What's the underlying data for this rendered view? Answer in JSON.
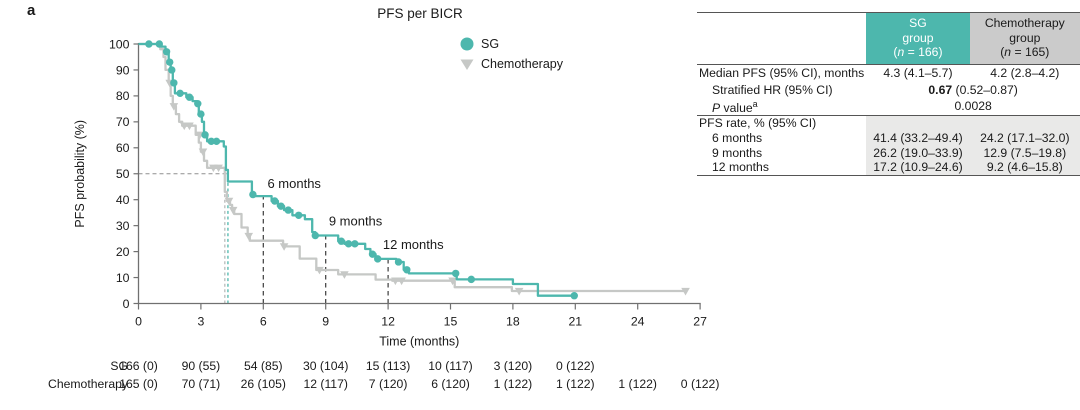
{
  "panel_label": "a",
  "title": "PFS per BICR",
  "legend": {
    "sg": "SG",
    "chemo": "Chemotherapy"
  },
  "colors": {
    "sg_teal": "#4db7ad",
    "chemo_gray": "#c6c8c6",
    "chemo_header_bg": "#cbcbcb",
    "rate_section_bg": "#e9e9e8",
    "axis": "#707070",
    "text": "#1a1a1a",
    "month_guide_dash": "#3b3b3b",
    "half_guide_dash": "#8f8f8f"
  },
  "chart_data": {
    "type": "line",
    "subtype": "kaplan-meier-step",
    "title": "PFS per BICR",
    "xlabel": "Time (months)",
    "ylabel": "PFS probability (%)",
    "xlim": [
      0,
      27
    ],
    "xticks": [
      0,
      3,
      6,
      9,
      12,
      15,
      18,
      21,
      24,
      27
    ],
    "ylim": [
      0,
      100
    ],
    "yticks": [
      0,
      10,
      20,
      30,
      40,
      50,
      60,
      70,
      80,
      90,
      100
    ],
    "grid": false,
    "legend_position": "upper right",
    "series": [
      {
        "name": "Chemotherapy",
        "color": "#c6c8c6",
        "marker": "triangle-down",
        "steps": [
          [
            0,
            100
          ],
          [
            1.05,
            100
          ],
          [
            1.05,
            98
          ],
          [
            1.2,
            98
          ],
          [
            1.2,
            95
          ],
          [
            1.3,
            95
          ],
          [
            1.3,
            90
          ],
          [
            1.45,
            90
          ],
          [
            1.45,
            85
          ],
          [
            1.55,
            85
          ],
          [
            1.55,
            80
          ],
          [
            1.65,
            80
          ],
          [
            1.65,
            76
          ],
          [
            1.8,
            76
          ],
          [
            1.8,
            73
          ],
          [
            1.95,
            73
          ],
          [
            1.95,
            70
          ],
          [
            2.1,
            70
          ],
          [
            2.1,
            68.5
          ],
          [
            2.75,
            68.5
          ],
          [
            2.75,
            65
          ],
          [
            2.9,
            65
          ],
          [
            2.9,
            62
          ],
          [
            3.0,
            62
          ],
          [
            3.0,
            58.5
          ],
          [
            3.15,
            58.5
          ],
          [
            3.15,
            55
          ],
          [
            3.3,
            55
          ],
          [
            3.3,
            52.3
          ],
          [
            4.15,
            52.3
          ],
          [
            4.15,
            43
          ],
          [
            4.25,
            43
          ],
          [
            4.25,
            39.5
          ],
          [
            4.4,
            39.5
          ],
          [
            4.4,
            38
          ],
          [
            4.5,
            38
          ],
          [
            4.5,
            36
          ],
          [
            4.6,
            36
          ],
          [
            4.6,
            34.5
          ],
          [
            4.95,
            34.5
          ],
          [
            4.95,
            29.3
          ],
          [
            5.25,
            29.3
          ],
          [
            5.25,
            26
          ],
          [
            5.35,
            26
          ],
          [
            5.35,
            24.2
          ],
          [
            6.95,
            24.2
          ],
          [
            6.95,
            22
          ],
          [
            7.75,
            22
          ],
          [
            7.75,
            17.3
          ],
          [
            8.55,
            17.3
          ],
          [
            8.55,
            12.9
          ],
          [
            9.6,
            12.9
          ],
          [
            9.6,
            11.2
          ],
          [
            11.4,
            11.2
          ],
          [
            11.4,
            9.2
          ],
          [
            12.2,
            9.2
          ],
          [
            12.2,
            8.8
          ],
          [
            15.2,
            8.8
          ],
          [
            15.2,
            6.3
          ],
          [
            17.95,
            6.3
          ],
          [
            17.95,
            4.8
          ],
          [
            26.3,
            4.8
          ]
        ],
        "censor_marks": [
          [
            1.5,
            85
          ],
          [
            1.7,
            76
          ],
          [
            2.2,
            68.5
          ],
          [
            2.45,
            68.5
          ],
          [
            2.95,
            65
          ],
          [
            3.1,
            58.5
          ],
          [
            3.6,
            52.3
          ],
          [
            3.85,
            52.3
          ],
          [
            4.35,
            39.5
          ],
          [
            4.55,
            36
          ],
          [
            5.3,
            26
          ],
          [
            7.0,
            22
          ],
          [
            8.7,
            12.9
          ],
          [
            9.9,
            11.2
          ],
          [
            12.35,
            8.8
          ],
          [
            12.65,
            8.8
          ],
          [
            15.1,
            8.8
          ],
          [
            18.3,
            4.8
          ],
          [
            26.3,
            4.8
          ]
        ]
      },
      {
        "name": "SG",
        "color": "#4db7ad",
        "marker": "circle",
        "steps": [
          [
            0,
            100
          ],
          [
            1.1,
            100
          ],
          [
            1.1,
            99
          ],
          [
            1.3,
            99
          ],
          [
            1.3,
            97
          ],
          [
            1.45,
            97
          ],
          [
            1.45,
            93
          ],
          [
            1.55,
            93
          ],
          [
            1.55,
            90
          ],
          [
            1.65,
            90
          ],
          [
            1.65,
            85
          ],
          [
            1.75,
            85
          ],
          [
            1.75,
            81
          ],
          [
            2.3,
            81
          ],
          [
            2.3,
            79.5
          ],
          [
            2.6,
            79.5
          ],
          [
            2.6,
            78
          ],
          [
            2.8,
            78
          ],
          [
            2.8,
            77
          ],
          [
            2.9,
            77
          ],
          [
            2.9,
            73
          ],
          [
            3.05,
            73
          ],
          [
            3.05,
            70
          ],
          [
            3.15,
            70
          ],
          [
            3.15,
            65
          ],
          [
            3.3,
            65
          ],
          [
            3.3,
            62.5
          ],
          [
            4.1,
            62.5
          ],
          [
            4.1,
            60.5
          ],
          [
            4.2,
            60.5
          ],
          [
            4.2,
            51.5
          ],
          [
            4.3,
            51.5
          ],
          [
            4.3,
            47
          ],
          [
            5.45,
            47
          ],
          [
            5.45,
            42
          ],
          [
            5.6,
            42
          ],
          [
            5.6,
            41.4
          ],
          [
            6.4,
            41.4
          ],
          [
            6.4,
            39.5
          ],
          [
            6.7,
            39.5
          ],
          [
            6.7,
            37.5
          ],
          [
            7.0,
            37.5
          ],
          [
            7.0,
            36
          ],
          [
            7.4,
            36
          ],
          [
            7.4,
            34
          ],
          [
            8.0,
            34
          ],
          [
            8.0,
            32.5
          ],
          [
            8.35,
            32.5
          ],
          [
            8.35,
            27.5
          ],
          [
            8.5,
            27.5
          ],
          [
            8.5,
            26.2
          ],
          [
            9.6,
            26.2
          ],
          [
            9.6,
            24
          ],
          [
            9.9,
            24
          ],
          [
            9.9,
            23
          ],
          [
            10.9,
            23
          ],
          [
            10.9,
            21
          ],
          [
            11.15,
            21
          ],
          [
            11.15,
            19
          ],
          [
            11.4,
            19
          ],
          [
            11.4,
            17.2
          ],
          [
            12.4,
            17.2
          ],
          [
            12.4,
            16
          ],
          [
            12.75,
            16
          ],
          [
            12.75,
            13
          ],
          [
            13.0,
            13
          ],
          [
            13.0,
            11.6
          ],
          [
            15.3,
            11.6
          ],
          [
            15.3,
            9.3
          ],
          [
            18.0,
            9.3
          ],
          [
            18.0,
            7.5
          ],
          [
            19.2,
            7.5
          ],
          [
            19.2,
            3.0
          ],
          [
            20.95,
            3.0
          ]
        ],
        "censor_marks": [
          [
            0.5,
            100
          ],
          [
            1.0,
            100
          ],
          [
            1.35,
            97
          ],
          [
            1.5,
            93
          ],
          [
            1.6,
            90
          ],
          [
            1.7,
            85
          ],
          [
            2.0,
            81
          ],
          [
            2.45,
            79.5
          ],
          [
            2.85,
            77
          ],
          [
            3.0,
            73
          ],
          [
            3.2,
            65
          ],
          [
            3.5,
            62.5
          ],
          [
            3.75,
            62.5
          ],
          [
            5.5,
            42
          ],
          [
            6.55,
            39.5
          ],
          [
            6.85,
            37.5
          ],
          [
            7.2,
            36
          ],
          [
            7.7,
            34
          ],
          [
            8.5,
            26.2
          ],
          [
            9.75,
            24
          ],
          [
            10.1,
            23
          ],
          [
            10.4,
            23
          ],
          [
            11.25,
            19
          ],
          [
            11.5,
            17.2
          ],
          [
            12.5,
            16
          ],
          [
            12.9,
            13
          ],
          [
            15.25,
            11.6
          ],
          [
            16.0,
            9.3
          ],
          [
            20.95,
            3.0
          ]
        ]
      }
    ],
    "median_guides": [
      {
        "series": "Chemotherapy",
        "x": 4.15,
        "to_y": 50,
        "color": "#b9bbba"
      },
      {
        "series": "SG",
        "x": 4.3,
        "to_y": 50,
        "color": "#4db7ad"
      }
    ],
    "half_probability_guide": {
      "y": 50,
      "x_from": 0,
      "x_to": 4.3
    },
    "month_guides": [
      {
        "x": 6,
        "to_y": 41.4
      },
      {
        "x": 9,
        "to_y": 26.2
      },
      {
        "x": 12,
        "to_y": 17.2
      }
    ],
    "annotations": [
      {
        "text": "6 months",
        "x": 6.2,
        "y": 44.5
      },
      {
        "text": "9 months",
        "x": 9.15,
        "y": 30
      },
      {
        "text": "12 months",
        "x": 11.75,
        "y": 21
      }
    ],
    "at_risk": {
      "tick_months": [
        0,
        3,
        6,
        9,
        12,
        15,
        18,
        21,
        24,
        27
      ],
      "rows": [
        {
          "label": "SG",
          "values": [
            "166 (0)",
            "90 (55)",
            "54 (85)",
            "30 (104)",
            "15 (113)",
            "10 (117)",
            "3 (120)",
            "0 (122)"
          ]
        },
        {
          "label": "Chemotherapy",
          "values": [
            "165 (0)",
            "70 (71)",
            "26 (105)",
            "12 (117)",
            "7 (120)",
            "6 (120)",
            "1 (122)",
            "1 (122)",
            "1 (122)",
            "0 (122)"
          ]
        }
      ]
    }
  },
  "table": {
    "header": {
      "sg": {
        "line1": "SG",
        "line2": "group",
        "n_open": "(",
        "n_italic": "n",
        "n_rest": " = 166)"
      },
      "chemo": {
        "line1": "Chemotherapy",
        "line2": "group",
        "n_open": "(",
        "n_italic": "n",
        "n_rest": " = 165)"
      }
    },
    "rows": {
      "median_label": "Median PFS (95% CI), months",
      "median_sg": "4.3 (4.1–5.7)",
      "median_chemo": "4.2 (2.8–4.2)",
      "hr_label": "Stratified HR (95% CI)",
      "hr_bold": "0.67",
      "hr_rest": " (0.52–0.87)",
      "p_label_italic": "P",
      "p_label_rest": " value",
      "p_sup": "a",
      "p_value": "0.0028",
      "rate_label": "PFS rate, % (95% CI)",
      "rate_rows": [
        {
          "label": "6 months",
          "sg": "41.4 (33.2–49.4)",
          "chemo": "24.2 (17.1–32.0)"
        },
        {
          "label": "9 months",
          "sg": "26.2 (19.0–33.9)",
          "chemo": "12.9 (7.5–19.8)"
        },
        {
          "label": "12 months",
          "sg": "17.2 (10.9–24.6)",
          "chemo": "9.2 (4.6–15.8)"
        }
      ]
    }
  }
}
